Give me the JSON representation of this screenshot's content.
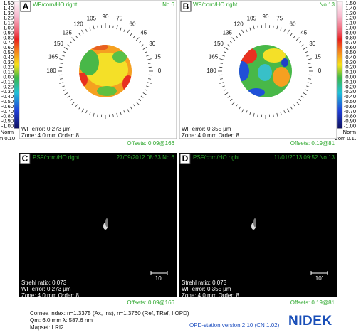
{
  "scale": {
    "labels": [
      "1.50",
      "1.40",
      "1.30",
      "1.20",
      "1.10",
      "1.00",
      "0.90",
      "0.80",
      "0.70",
      "0.60",
      "0.50",
      "0.40",
      "0.30",
      "0.20",
      "0.10",
      "0.00",
      "-0.10",
      "-0.20",
      "-0.30",
      "-0.40",
      "-0.50",
      "-0.60",
      "-0.70",
      "-0.80",
      "-0.90",
      "-1.00"
    ],
    "norm": "Norm",
    "com": "Com 0.10"
  },
  "angles": [
    105,
    90,
    75,
    120,
    60,
    135,
    45,
    150,
    30,
    165,
    15,
    180,
    0
  ],
  "maps": [
    {
      "letter": "A",
      "title": "WF/corn/HO right",
      "number": "No 6",
      "lines": [
        "WF error: 0.273 µm",
        "Zone: 4.0 mm Order: 8"
      ],
      "offsets": "Offsets: 0.09@166"
    },
    {
      "letter": "B",
      "title": "WF/corn/HO right",
      "number": "No 13",
      "lines": [
        "WF error: 0.355 µm",
        "Zone: 4.0 mm Order: 8"
      ],
      "offsets": "Offsets: 0.19@81"
    }
  ],
  "psf": [
    {
      "letter": "C",
      "title": "PSF/corn/HO right",
      "date": "27/09/2012 08:33 No 6",
      "lines": [
        "Strehl ratio: 0.073",
        "WF error: 0.273 µm",
        "Zone: 4.0 mm Order: 8"
      ],
      "offsets": "Offsets: 0.09@166",
      "scale_label": "10'"
    },
    {
      "letter": "D",
      "title": "PSF/corn/HO right",
      "date": "11/01/2013 09:52 No 13",
      "lines": [
        "Strehl ratio: 0.073",
        "WF error: 0.355 µm",
        "Zone: 4.0 mm Order: 8"
      ],
      "offsets": "Offsets: 0.19@81",
      "scale_label": "10'"
    }
  ],
  "footer": {
    "lines": [
      "Cornea index: n=1.3375 (Ax, Ins), n=1.3760 (Ref, TRef, I.OPD)",
      "Qm: 6.0 mm λ: 587.6 nm",
      "Mapset: LRI2"
    ],
    "version": "OPD-station version 2.10 (CN 1.02)",
    "brand": "NIDEK"
  }
}
